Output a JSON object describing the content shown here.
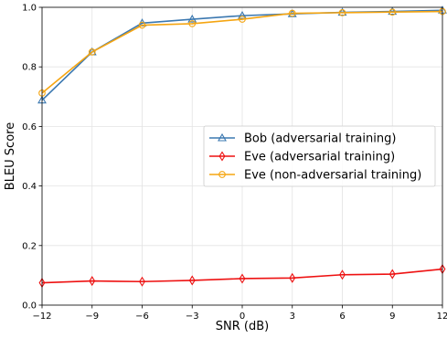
{
  "chart_data": {
    "type": "line",
    "title": "",
    "xlabel": "SNR (dB)",
    "ylabel": "BLEU Score",
    "xlim": [
      -12,
      12
    ],
    "ylim": [
      0,
      1.0
    ],
    "grid": true,
    "legend_position": "center-right",
    "x": [
      -12,
      -9,
      -6,
      -3,
      0,
      3,
      6,
      9,
      12
    ],
    "x_tick_labels": [
      "−12",
      "−9",
      "−6",
      "−3",
      "0",
      "3",
      "6",
      "9",
      "12"
    ],
    "y_ticks": [
      0.0,
      0.2,
      0.4,
      0.6,
      0.8,
      1.0
    ],
    "y_tick_labels": [
      "0.0",
      "0.2",
      "0.4",
      "0.6",
      "0.8",
      "1.0"
    ],
    "series": [
      {
        "name": "Bob (adversarial training)",
        "color": "#3b78b0",
        "marker": "triangle",
        "values": [
          0.688,
          0.85,
          0.947,
          0.96,
          0.972,
          0.978,
          0.983,
          0.986,
          0.99
        ]
      },
      {
        "name": "Eve (adversarial training)",
        "color": "#ee1111",
        "marker": "diamond",
        "values": [
          0.075,
          0.081,
          0.079,
          0.083,
          0.089,
          0.091,
          0.102,
          0.104,
          0.121
        ]
      },
      {
        "name": "Eve (non-adversarial training)",
        "color": "#f5a511",
        "marker": "circle",
        "values": [
          0.712,
          0.85,
          0.94,
          0.945,
          0.96,
          0.98,
          0.982,
          0.984,
          0.986
        ]
      }
    ]
  }
}
